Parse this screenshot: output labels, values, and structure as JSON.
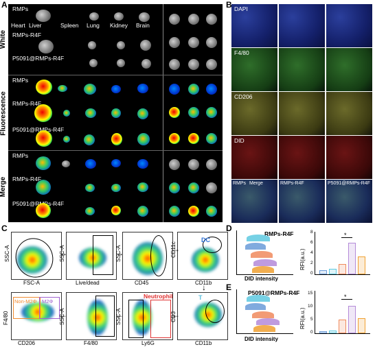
{
  "panels": {
    "a": "A",
    "b": "B",
    "c": "C",
    "d": "D",
    "e": "E"
  },
  "panel_a": {
    "rows": [
      "White",
      "Fluorescence",
      "Merge"
    ],
    "groups": [
      "RMPs",
      "RMPs-R4F",
      "P5091@RMPs-R4F"
    ],
    "organs": [
      "Heart",
      "Liver",
      "Spleen",
      "Lung",
      "Kidney",
      "Brain"
    ]
  },
  "panel_b": {
    "rows": [
      "DAPI",
      "F4/80",
      "CD206",
      "DID"
    ],
    "merge_labels": [
      "RMPs",
      "Merge",
      "RMPs-R4F",
      "P5091@RMPs-R4F"
    ]
  },
  "panel_c": {
    "axes": {
      "ssc_a": "SSC-A",
      "fsc_a": "FSC-A",
      "live_dead": "Live/dead",
      "cd45": "CD45",
      "cd11c": "CD11c",
      "cd11b": "CD11b",
      "cd3": "CD3",
      "ly6g": "Ly6G",
      "f4_80": "F4/80",
      "cd206": "CD206"
    },
    "gates": {
      "dc": "DC",
      "t": "T",
      "neutrophil": "Neutrophil",
      "non_m2": "Non-M2Φ",
      "m2": "M2Φ"
    }
  },
  "panel_d": {
    "title": "RMPs-R4F",
    "xlabel": "DID intensity",
    "ylabel": "RFI(a.u.)",
    "yticks": [
      "0",
      "2",
      "4",
      "6",
      "8"
    ],
    "sig": "*"
  },
  "panel_e": {
    "title": "P5091@RMPs-R4F",
    "xlabel": "DID intensity",
    "ylabel": "RFI(a.u.)",
    "yticks": [
      "0",
      "5",
      "10",
      "15"
    ],
    "sig": "*"
  },
  "chart_data": [
    {
      "type": "bar",
      "title": "RMPs-R4F",
      "ylabel": "RFI(a.u.)",
      "ylim": [
        0,
        8
      ],
      "values": [
        0.6,
        0.8,
        1.8,
        5.9,
        3.2
      ],
      "colors": [
        "#6a9bd8",
        "#5ec9e0",
        "#f08a5d",
        "#b48ad8",
        "#f0a030"
      ]
    },
    {
      "type": "bar",
      "title": "P5091@RMPs-R4F",
      "ylabel": "RFI(a.u.)",
      "ylim": [
        0,
        15
      ],
      "values": [
        0.3,
        0.5,
        4.5,
        9.5,
        5.0
      ],
      "colors": [
        "#6a9bd8",
        "#5ec9e0",
        "#f08a5d",
        "#b48ad8",
        "#f0a030"
      ]
    }
  ]
}
